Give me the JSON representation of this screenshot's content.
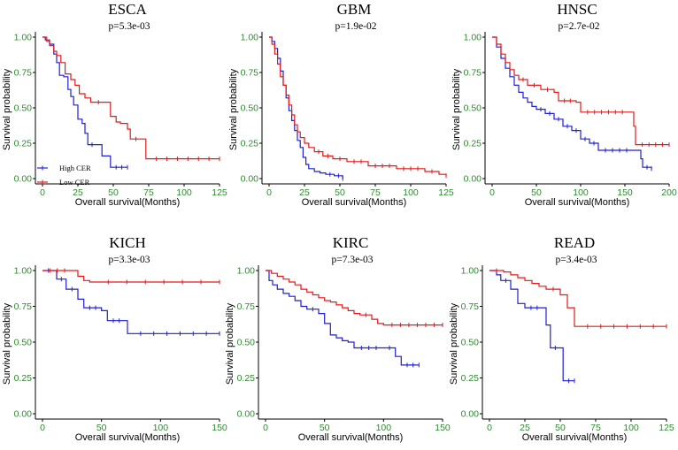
{
  "colors": {
    "high": "#1f1fd6",
    "low": "#e31a1c",
    "tick": "#2e8b2e",
    "axis": "#000000"
  },
  "legend": {
    "high_label": "High CER",
    "low_label": "Low CER"
  },
  "chart_data": [
    {
      "type": "line",
      "title": "ESCA",
      "pvalue": "p=5.3e-03",
      "xlabel": "Overall survival(Months)",
      "ylabel": "Survival probability",
      "xlim": [
        0,
        125
      ],
      "xticks": [
        0,
        25,
        50,
        75,
        100,
        125
      ],
      "ylim": [
        0,
        1
      ],
      "yticks": [
        "0.00",
        "0.25",
        "0.50",
        "0.75",
        "1.00"
      ],
      "series": [
        {
          "name": "High CER",
          "points": [
            [
              0,
              1
            ],
            [
              2,
              0.98
            ],
            [
              5,
              0.95
            ],
            [
              8,
              0.88
            ],
            [
              10,
              0.82
            ],
            [
              12,
              0.73
            ],
            [
              15,
              0.72
            ],
            [
              18,
              0.63
            ],
            [
              20,
              0.58
            ],
            [
              22,
              0.52
            ],
            [
              25,
              0.42
            ],
            [
              28,
              0.39
            ],
            [
              30,
              0.32
            ],
            [
              32,
              0.24
            ],
            [
              38,
              0.24
            ],
            [
              42,
              0.16
            ],
            [
              45,
              0.16
            ],
            [
              48,
              0.08
            ],
            [
              60,
              0.08
            ]
          ]
        },
        {
          "name": "Low CER",
          "points": [
            [
              0,
              1
            ],
            [
              3,
              0.97
            ],
            [
              5,
              0.94
            ],
            [
              8,
              0.9
            ],
            [
              10,
              0.87
            ],
            [
              13,
              0.82
            ],
            [
              16,
              0.74
            ],
            [
              20,
              0.7
            ],
            [
              23,
              0.66
            ],
            [
              26,
              0.6
            ],
            [
              30,
              0.57
            ],
            [
              34,
              0.54
            ],
            [
              45,
              0.54
            ],
            [
              48,
              0.44
            ],
            [
              52,
              0.4
            ],
            [
              55,
              0.39
            ],
            [
              60,
              0.35
            ],
            [
              62,
              0.28
            ],
            [
              70,
              0.28
            ],
            [
              73,
              0.14
            ],
            [
              125,
              0.14
            ]
          ]
        }
      ]
    },
    {
      "type": "line",
      "title": "GBM",
      "pvalue": "p=1.9e-02",
      "xlabel": "Overall survival(Months)",
      "ylabel": "Survival probability",
      "xlim": [
        0,
        125
      ],
      "xticks": [
        0,
        25,
        50,
        75,
        100,
        125
      ],
      "ylim": [
        0,
        1
      ],
      "yticks": [
        "0.00",
        "0.25",
        "0.50",
        "0.75",
        "1.00"
      ],
      "series": [
        {
          "name": "High CER",
          "points": [
            [
              0,
              1
            ],
            [
              2,
              0.97
            ],
            [
              4,
              0.92
            ],
            [
              6,
              0.85
            ],
            [
              8,
              0.76
            ],
            [
              10,
              0.66
            ],
            [
              12,
              0.57
            ],
            [
              14,
              0.48
            ],
            [
              16,
              0.41
            ],
            [
              18,
              0.34
            ],
            [
              20,
              0.27
            ],
            [
              22,
              0.22
            ],
            [
              24,
              0.15
            ],
            [
              26,
              0.1
            ],
            [
              28,
              0.07
            ],
            [
              32,
              0.05
            ],
            [
              36,
              0.04
            ],
            [
              40,
              0.03
            ],
            [
              46,
              0.02
            ],
            [
              52,
              0.0
            ]
          ]
        },
        {
          "name": "Low CER",
          "points": [
            [
              0,
              1
            ],
            [
              2,
              0.95
            ],
            [
              4,
              0.88
            ],
            [
              6,
              0.81
            ],
            [
              8,
              0.72
            ],
            [
              10,
              0.66
            ],
            [
              12,
              0.59
            ],
            [
              14,
              0.52
            ],
            [
              16,
              0.45
            ],
            [
              18,
              0.38
            ],
            [
              20,
              0.33
            ],
            [
              22,
              0.29
            ],
            [
              25,
              0.25
            ],
            [
              28,
              0.22
            ],
            [
              32,
              0.19
            ],
            [
              38,
              0.16
            ],
            [
              45,
              0.14
            ],
            [
              55,
              0.12
            ],
            [
              70,
              0.09
            ],
            [
              90,
              0.07
            ],
            [
              110,
              0.05
            ],
            [
              120,
              0.03
            ],
            [
              125,
              0.02
            ]
          ]
        }
      ]
    },
    {
      "type": "line",
      "title": "HNSC",
      "pvalue": "p=2.7e-02",
      "xlabel": "Overall survival(Months)",
      "ylabel": "Survival probability",
      "xlim": [
        0,
        200
      ],
      "xticks": [
        0,
        50,
        100,
        150,
        200
      ],
      "ylim": [
        0,
        1
      ],
      "yticks": [
        "0.00",
        "0.25",
        "0.50",
        "0.75",
        "1.00"
      ],
      "series": [
        {
          "name": "High CER",
          "points": [
            [
              0,
              1
            ],
            [
              5,
              0.93
            ],
            [
              10,
              0.85
            ],
            [
              15,
              0.78
            ],
            [
              20,
              0.72
            ],
            [
              25,
              0.66
            ],
            [
              30,
              0.61
            ],
            [
              35,
              0.57
            ],
            [
              40,
              0.54
            ],
            [
              45,
              0.51
            ],
            [
              50,
              0.49
            ],
            [
              60,
              0.46
            ],
            [
              70,
              0.42
            ],
            [
              80,
              0.37
            ],
            [
              90,
              0.34
            ],
            [
              100,
              0.28
            ],
            [
              110,
              0.25
            ],
            [
              120,
              0.2
            ],
            [
              160,
              0.2
            ],
            [
              168,
              0.14
            ],
            [
              170,
              0.08
            ],
            [
              180,
              0.07
            ]
          ]
        },
        {
          "name": "Low CER",
          "points": [
            [
              0,
              1
            ],
            [
              5,
              0.95
            ],
            [
              10,
              0.88
            ],
            [
              15,
              0.82
            ],
            [
              20,
              0.77
            ],
            [
              25,
              0.73
            ],
            [
              30,
              0.7
            ],
            [
              40,
              0.66
            ],
            [
              55,
              0.63
            ],
            [
              70,
              0.61
            ],
            [
              75,
              0.55
            ],
            [
              95,
              0.54
            ],
            [
              100,
              0.47
            ],
            [
              155,
              0.47
            ],
            [
              160,
              0.37
            ],
            [
              162,
              0.24
            ],
            [
              200,
              0.24
            ]
          ]
        }
      ]
    },
    {
      "type": "line",
      "title": "KICH",
      "pvalue": "p=3.3e-03",
      "xlabel": "Overall survival(Months)",
      "ylabel": "Survival probability",
      "xlim": [
        0,
        150
      ],
      "xticks": [
        0,
        50,
        100,
        150
      ],
      "ylim": [
        0,
        1
      ],
      "yticks": [
        "0.00",
        "0.25",
        "0.50",
        "0.75",
        "1.00"
      ],
      "series": [
        {
          "name": "High CER",
          "points": [
            [
              0,
              1
            ],
            [
              10,
              1
            ],
            [
              12,
              0.94
            ],
            [
              20,
              0.87
            ],
            [
              30,
              0.8
            ],
            [
              35,
              0.74
            ],
            [
              50,
              0.72
            ],
            [
              55,
              0.65
            ],
            [
              70,
              0.65
            ],
            [
              72,
              0.56
            ],
            [
              150,
              0.56
            ]
          ]
        },
        {
          "name": "Low CER",
          "points": [
            [
              0,
              1
            ],
            [
              25,
              1
            ],
            [
              30,
              0.96
            ],
            [
              35,
              0.93
            ],
            [
              40,
              0.92
            ],
            [
              150,
              0.92
            ]
          ]
        }
      ]
    },
    {
      "type": "line",
      "title": "KIRC",
      "pvalue": "p=7.3e-03",
      "xlabel": "Overall survival(Months)",
      "ylabel": "Survival probability",
      "xlim": [
        0,
        150
      ],
      "xticks": [
        0,
        50,
        100,
        150
      ],
      "ylim": [
        0,
        1
      ],
      "yticks": [
        "0.00",
        "0.25",
        "0.50",
        "0.75",
        "1.00"
      ],
      "series": [
        {
          "name": "High CER",
          "points": [
            [
              0,
              1
            ],
            [
              3,
              0.93
            ],
            [
              6,
              0.9
            ],
            [
              10,
              0.87
            ],
            [
              15,
              0.84
            ],
            [
              20,
              0.82
            ],
            [
              25,
              0.79
            ],
            [
              30,
              0.75
            ],
            [
              35,
              0.73
            ],
            [
              45,
              0.7
            ],
            [
              50,
              0.63
            ],
            [
              55,
              0.55
            ],
            [
              60,
              0.53
            ],
            [
              65,
              0.51
            ],
            [
              70,
              0.5
            ],
            [
              75,
              0.46
            ],
            [
              100,
              0.46
            ],
            [
              110,
              0.4
            ],
            [
              115,
              0.34
            ],
            [
              130,
              0.34
            ]
          ]
        },
        {
          "name": "Low CER",
          "points": [
            [
              0,
              1
            ],
            [
              5,
              0.98
            ],
            [
              10,
              0.96
            ],
            [
              15,
              0.94
            ],
            [
              20,
              0.92
            ],
            [
              25,
              0.9
            ],
            [
              30,
              0.87
            ],
            [
              35,
              0.85
            ],
            [
              40,
              0.83
            ],
            [
              45,
              0.81
            ],
            [
              50,
              0.79
            ],
            [
              55,
              0.78
            ],
            [
              60,
              0.76
            ],
            [
              65,
              0.74
            ],
            [
              70,
              0.72
            ],
            [
              75,
              0.7
            ],
            [
              80,
              0.69
            ],
            [
              90,
              0.66
            ],
            [
              95,
              0.63
            ],
            [
              100,
              0.62
            ],
            [
              150,
              0.62
            ]
          ]
        }
      ]
    },
    {
      "type": "line",
      "title": "READ",
      "pvalue": "p=3.4e-03",
      "xlabel": "Overall survival(Months)",
      "ylabel": "Survival probability",
      "xlim": [
        0,
        125
      ],
      "xticks": [
        0,
        25,
        50,
        75,
        100,
        125
      ],
      "ylim": [
        0,
        1
      ],
      "yticks": [
        "0.00",
        "0.25",
        "0.50",
        "0.75",
        "1.00"
      ],
      "series": [
        {
          "name": "High CER",
          "points": [
            [
              0,
              1
            ],
            [
              5,
              0.97
            ],
            [
              8,
              0.93
            ],
            [
              15,
              0.87
            ],
            [
              20,
              0.77
            ],
            [
              25,
              0.74
            ],
            [
              38,
              0.74
            ],
            [
              40,
              0.62
            ],
            [
              43,
              0.46
            ],
            [
              50,
              0.46
            ],
            [
              52,
              0.23
            ],
            [
              60,
              0.23
            ]
          ]
        },
        {
          "name": "Low CER",
          "points": [
            [
              0,
              1
            ],
            [
              10,
              0.99
            ],
            [
              15,
              0.97
            ],
            [
              20,
              0.95
            ],
            [
              25,
              0.93
            ],
            [
              30,
              0.91
            ],
            [
              35,
              0.89
            ],
            [
              40,
              0.87
            ],
            [
              50,
              0.83
            ],
            [
              55,
              0.74
            ],
            [
              58,
              0.74
            ],
            [
              60,
              0.61
            ],
            [
              125,
              0.61
            ]
          ]
        }
      ]
    }
  ]
}
